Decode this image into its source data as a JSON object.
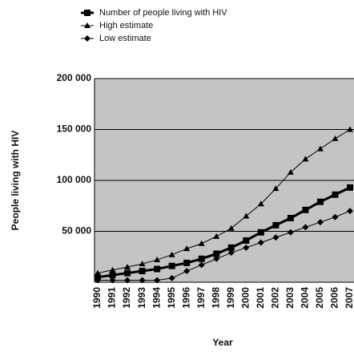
{
  "chart_data": {
    "type": "line",
    "x_label": "Year",
    "y_label": "People living with HIV",
    "categories": [
      "1990",
      "1991",
      "1992",
      "1993",
      "1994",
      "1995",
      "1996",
      "1997",
      "1998",
      "1999",
      "2000",
      "2001",
      "2002",
      "2003",
      "2004",
      "2005",
      "2006",
      "2007"
    ],
    "series": [
      {
        "name": "Number of people living with HIV",
        "color": "#000000",
        "marker": "square",
        "values": [
          5000,
          7000,
          9000,
          11000,
          13000,
          16000,
          19000,
          23000,
          28000,
          34000,
          41000,
          49000,
          56000,
          63000,
          71000,
          79000,
          86000,
          93000
        ]
      },
      {
        "name": "High estimate",
        "color": "#000000",
        "marker": "triangle",
        "values": [
          9000,
          12000,
          15000,
          18000,
          22000,
          27000,
          33000,
          38000,
          45000,
          53000,
          65000,
          77000,
          92000,
          108000,
          121000,
          131000,
          141000,
          150000
        ]
      },
      {
        "name": "Low estimate",
        "color": "#000000",
        "marker": "diamond",
        "values": [
          2000,
          2000,
          2000,
          2000,
          2000,
          4000,
          11000,
          17000,
          23000,
          29000,
          34000,
          39000,
          44000,
          49000,
          54000,
          59000,
          64000,
          70000
        ]
      }
    ],
    "ylim": [
      0,
      200000
    ],
    "yticks": [
      {
        "value": 50000,
        "label": "50 000"
      },
      {
        "value": 100000,
        "label": "100 000"
      },
      {
        "value": 150000,
        "label": "150 000"
      },
      {
        "value": 200000,
        "label": "200 000"
      }
    ],
    "grid": true,
    "legend": "top",
    "plot_background": "#c4c4c4"
  }
}
